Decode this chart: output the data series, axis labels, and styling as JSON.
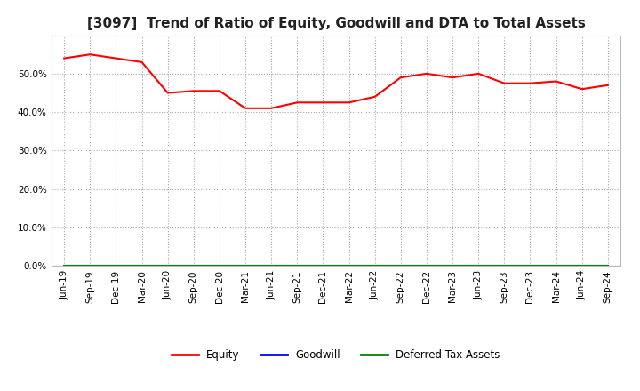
{
  "title": "[3097]  Trend of Ratio of Equity, Goodwill and DTA to Total Assets",
  "x_labels": [
    "Jun-19",
    "Sep-19",
    "Dec-19",
    "Mar-20",
    "Jun-20",
    "Sep-20",
    "Dec-20",
    "Mar-21",
    "Jun-21",
    "Sep-21",
    "Dec-21",
    "Mar-22",
    "Jun-22",
    "Sep-22",
    "Dec-22",
    "Mar-23",
    "Jun-23",
    "Sep-23",
    "Dec-23",
    "Mar-24",
    "Jun-24",
    "Sep-24"
  ],
  "equity": [
    0.54,
    0.55,
    0.54,
    0.53,
    0.45,
    0.455,
    0.455,
    0.41,
    0.41,
    0.425,
    0.425,
    0.425,
    0.44,
    0.49,
    0.5,
    0.49,
    0.5,
    0.475,
    0.475,
    0.48,
    0.46,
    0.47
  ],
  "goodwill": [
    0.0,
    0.0,
    0.0,
    0.0,
    0.0,
    0.0,
    0.0,
    0.0,
    0.0,
    0.0,
    0.0,
    0.0,
    0.0,
    0.0,
    0.0,
    0.0,
    0.0,
    0.0,
    0.0,
    0.0,
    0.0,
    0.0
  ],
  "dta": [
    0.0,
    0.0,
    0.0,
    0.0,
    0.0,
    0.0,
    0.0,
    0.0,
    0.0,
    0.0,
    0.0,
    0.0,
    0.0,
    0.0,
    0.0,
    0.0,
    0.0,
    0.0,
    0.0,
    0.0,
    0.0,
    0.0
  ],
  "equity_color": "#ff0000",
  "goodwill_color": "#0000ff",
  "dta_color": "#008000",
  "ylim": [
    0.0,
    0.6
  ],
  "yticks": [
    0.0,
    0.1,
    0.2,
    0.3,
    0.4,
    0.5
  ],
  "background_color": "#ffffff",
  "grid_color": "#aaaaaa",
  "title_fontsize": 11,
  "tick_fontsize": 7.5
}
